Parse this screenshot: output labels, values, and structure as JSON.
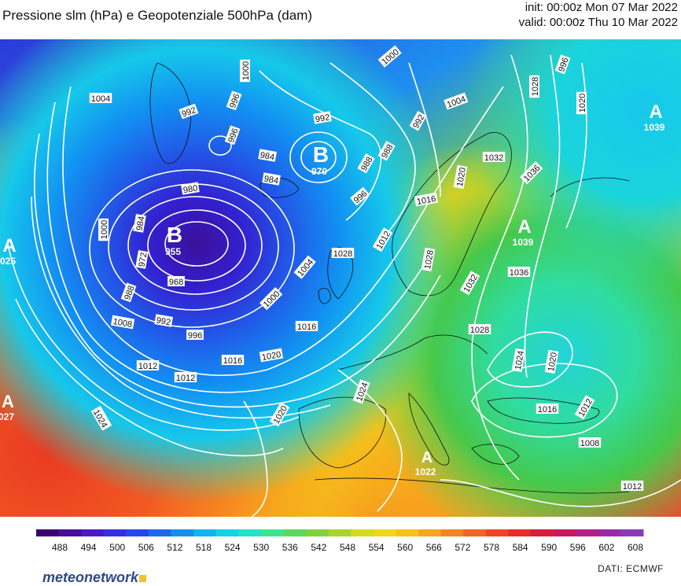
{
  "header": {
    "title": "Pressione slm (hPa) e Geopotenziale 500hPa (dam)",
    "init": "init: 00:00z Mon 07 Mar 2022",
    "valid": "valid: 00:00z Thu 10 Mar 2022"
  },
  "pressure_centers": [
    {
      "type": "B",
      "value": "955"
    },
    {
      "type": "B",
      "value": "970"
    },
    {
      "type": "A",
      "value": "1039"
    },
    {
      "type": "A",
      "value": "1039"
    },
    {
      "type": "A",
      "value": "025"
    },
    {
      "type": "A",
      "value": "027"
    },
    {
      "type": "A",
      "value": "1022"
    }
  ],
  "isobar_labels": [
    "1004",
    "992",
    "996",
    "1000",
    "996",
    "992",
    "984",
    "988",
    "984",
    "980",
    "984",
    "1000",
    "972",
    "968",
    "988",
    "992",
    "996",
    "1000",
    "1004",
    "1008",
    "1012",
    "1016",
    "1020",
    "1024",
    "1012",
    "1016",
    "996",
    "988",
    "992",
    "1000",
    "1004",
    "996",
    "1028",
    "1020",
    "1036",
    "1024",
    "1032",
    "1020",
    "1016",
    "1012",
    "1028",
    "1028",
    "1032",
    "1036",
    "1028",
    "1024",
    "1020",
    "1016",
    "1012",
    "1008",
    "1012",
    "1020",
    "1024"
  ],
  "colorbar": {
    "ticks": [
      "488",
      "494",
      "500",
      "506",
      "512",
      "518",
      "524",
      "530",
      "536",
      "542",
      "548",
      "554",
      "560",
      "566",
      "572",
      "578",
      "584",
      "590",
      "596",
      "602",
      "608"
    ],
    "colors": [
      "#3c0070",
      "#4a0a9a",
      "#4a1ac8",
      "#3a2ee0",
      "#2848ea",
      "#1c6af0",
      "#1490f4",
      "#10b4f2",
      "#14d2e8",
      "#24e2c4",
      "#3ee490",
      "#5cd85a",
      "#7ed23c",
      "#a6d62c",
      "#d4dc20",
      "#f2d618",
      "#f6c21a",
      "#f8a41e",
      "#f88420",
      "#f46424",
      "#f04426",
      "#e82a28",
      "#d81c3a",
      "#c81a5e",
      "#b41e86",
      "#9a2aa6",
      "#8a3ab6"
    ]
  },
  "source": "DATI:  ECMWF",
  "logo": "meteonetwork"
}
